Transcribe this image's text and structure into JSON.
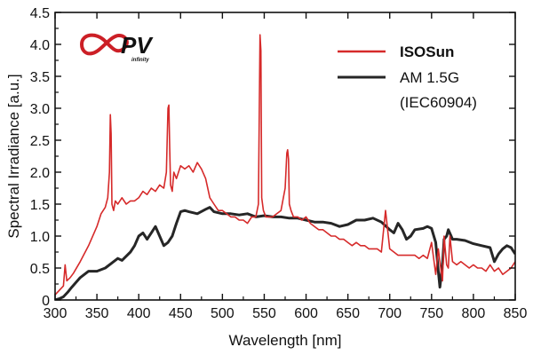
{
  "colors": {
    "isosun": "#d62a2a",
    "am15g": "#262626",
    "axis": "#111111",
    "logo_red": "#cc1f26",
    "logo_dark": "#2b2b2b"
  },
  "logo": {
    "text": "PV",
    "subtext": "infinity"
  },
  "chart_data": {
    "type": "line",
    "xlabel": "Wavelength [nm]",
    "ylabel": "Spectral Irradiance [a.u.]",
    "xlim": [
      300,
      850
    ],
    "ylim": [
      0,
      4.5
    ],
    "xticks": [
      300,
      350,
      400,
      450,
      500,
      550,
      600,
      650,
      700,
      750,
      800,
      850
    ],
    "yticks": [
      0,
      0.5,
      1.0,
      1.5,
      2.0,
      2.5,
      3.0,
      3.5,
      4.0,
      4.5
    ],
    "ytick_labels": [
      "0",
      "0.5",
      "1.0",
      "1.5",
      "2.0",
      "2.5",
      "3.0",
      "3.5",
      "4.0",
      "4.5"
    ],
    "grid": false,
    "legend_position": "top-right",
    "series": [
      {
        "name": "ISOSun",
        "color": "#d62a2a",
        "x": [
          300,
          305,
          310,
          312,
          314,
          318,
          322,
          330,
          340,
          350,
          355,
          360,
          363,
          365,
          366,
          367,
          368,
          370,
          372,
          375,
          380,
          385,
          390,
          395,
          400,
          405,
          410,
          415,
          420,
          425,
          430,
          433,
          435,
          436,
          437,
          438,
          440,
          442,
          445,
          450,
          455,
          460,
          465,
          470,
          475,
          480,
          485,
          490,
          495,
          500,
          505,
          510,
          515,
          520,
          525,
          530,
          535,
          540,
          543,
          545,
          546,
          547,
          549,
          552,
          556,
          560,
          565,
          570,
          575,
          577,
          578,
          579,
          580,
          582,
          585,
          590,
          595,
          600,
          605,
          610,
          615,
          620,
          625,
          630,
          635,
          640,
          645,
          650,
          655,
          660,
          665,
          670,
          675,
          680,
          685,
          690,
          695,
          700,
          705,
          710,
          715,
          720,
          725,
          730,
          735,
          740,
          745,
          750,
          755,
          758,
          760,
          763,
          765,
          768,
          770,
          772,
          775,
          780,
          785,
          790,
          795,
          800,
          805,
          810,
          815,
          820,
          825,
          830,
          835,
          840,
          845,
          850
        ],
        "y": [
          0.08,
          0.15,
          0.22,
          0.55,
          0.3,
          0.35,
          0.42,
          0.6,
          0.85,
          1.15,
          1.35,
          1.45,
          1.6,
          2.0,
          2.9,
          2.6,
          1.5,
          1.4,
          1.55,
          1.5,
          1.6,
          1.5,
          1.55,
          1.55,
          1.6,
          1.7,
          1.65,
          1.75,
          1.7,
          1.8,
          1.75,
          2.0,
          3.0,
          3.05,
          2.4,
          1.8,
          1.7,
          2.0,
          1.9,
          2.1,
          2.05,
          2.1,
          2.0,
          2.15,
          2.05,
          1.9,
          1.6,
          1.5,
          1.4,
          1.4,
          1.35,
          1.3,
          1.3,
          1.25,
          1.25,
          1.2,
          1.3,
          1.3,
          1.5,
          4.15,
          3.9,
          1.6,
          1.4,
          1.3,
          1.3,
          1.3,
          1.35,
          1.4,
          1.75,
          2.3,
          2.35,
          2.2,
          1.5,
          1.4,
          1.3,
          1.3,
          1.25,
          1.3,
          1.2,
          1.15,
          1.1,
          1.1,
          1.05,
          1.0,
          1.0,
          0.95,
          0.95,
          0.9,
          0.85,
          0.9,
          0.85,
          0.85,
          0.8,
          0.8,
          0.8,
          0.75,
          1.4,
          0.8,
          0.75,
          0.7,
          0.7,
          0.7,
          0.7,
          0.7,
          0.65,
          0.7,
          0.65,
          0.9,
          0.4,
          0.8,
          0.6,
          0.3,
          1.0,
          0.55,
          0.5,
          1.0,
          0.6,
          0.55,
          0.6,
          0.55,
          0.5,
          0.55,
          0.5,
          0.5,
          0.45,
          0.55,
          0.45,
          0.5,
          0.4,
          0.45,
          0.5,
          0.6
        ]
      },
      {
        "name": "AM 1.5G",
        "name_line2": "(IEC60904)",
        "color": "#262626",
        "x": [
          300,
          305,
          310,
          315,
          320,
          330,
          340,
          350,
          360,
          370,
          375,
          380,
          390,
          395,
          400,
          405,
          410,
          415,
          420,
          425,
          430,
          435,
          440,
          445,
          450,
          455,
          460,
          470,
          480,
          485,
          490,
          500,
          510,
          520,
          530,
          540,
          550,
          560,
          570,
          580,
          590,
          600,
          610,
          620,
          630,
          640,
          650,
          660,
          670,
          680,
          690,
          700,
          705,
          710,
          715,
          720,
          725,
          730,
          740,
          745,
          750,
          755,
          758,
          760,
          763,
          765,
          768,
          770,
          775,
          780,
          790,
          800,
          810,
          820,
          825,
          830,
          835,
          840,
          845,
          850
        ],
        "y": [
          0.0,
          0.02,
          0.05,
          0.12,
          0.2,
          0.35,
          0.45,
          0.45,
          0.5,
          0.6,
          0.65,
          0.62,
          0.75,
          0.85,
          1.0,
          1.05,
          0.95,
          1.05,
          1.15,
          1.0,
          0.85,
          0.9,
          1.0,
          1.2,
          1.38,
          1.4,
          1.38,
          1.35,
          1.42,
          1.45,
          1.38,
          1.35,
          1.35,
          1.33,
          1.35,
          1.3,
          1.32,
          1.3,
          1.3,
          1.28,
          1.28,
          1.25,
          1.22,
          1.22,
          1.2,
          1.15,
          1.18,
          1.25,
          1.25,
          1.28,
          1.22,
          1.1,
          1.05,
          1.2,
          1.1,
          0.95,
          1.0,
          1.1,
          1.12,
          1.15,
          1.12,
          0.9,
          0.45,
          0.2,
          0.55,
          0.95,
          1.0,
          1.1,
          0.95,
          0.95,
          0.93,
          0.88,
          0.85,
          0.82,
          0.6,
          0.72,
          0.8,
          0.85,
          0.82,
          0.72
        ]
      }
    ]
  }
}
